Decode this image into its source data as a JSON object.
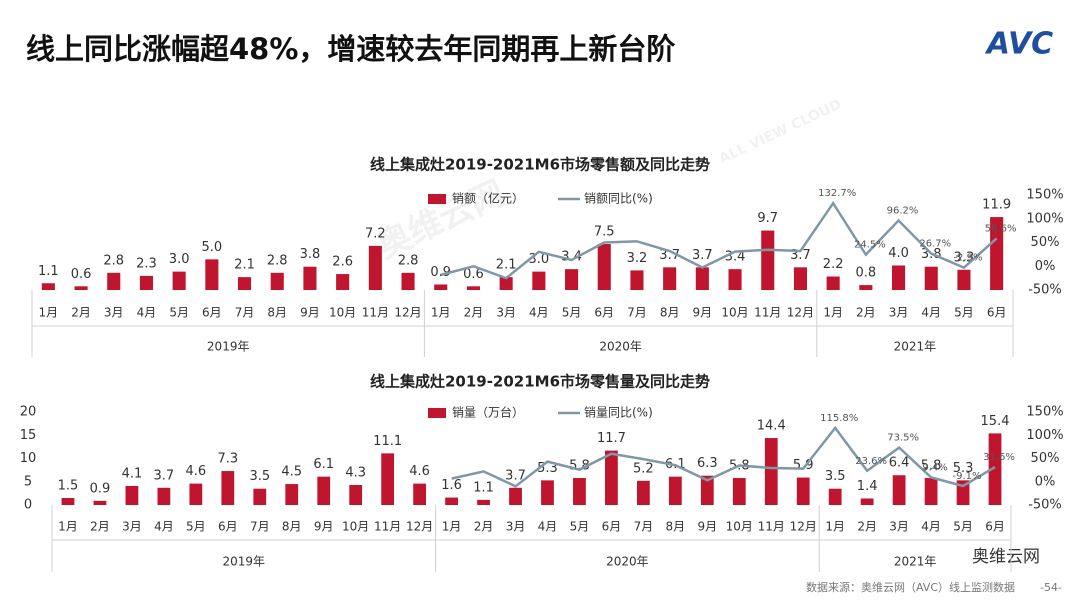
{
  "page": {
    "title": "线上同比涨幅超48%，增速较去年同期再上新台阶",
    "logo": "AVC",
    "source": "数据来源：奥维云网（AVC）线上监测数据",
    "page_number": "-54-",
    "wechat": "奥维云网",
    "watermarks": [
      "奥维云网",
      "ALL VIEW CLOUD"
    ]
  },
  "chart_data": [
    {
      "type": "combo",
      "title": "线上集成灶2019-2021M6市场零售额及同比走势",
      "categories": [
        "1月",
        "2月",
        "3月",
        "4月",
        "5月",
        "6月",
        "7月",
        "8月",
        "9月",
        "10月",
        "11月",
        "12月",
        "1月",
        "2月",
        "3月",
        "4月",
        "5月",
        "6月",
        "7月",
        "8月",
        "9月",
        "10月",
        "11月",
        "12月",
        "1月",
        "2月",
        "3月",
        "4月",
        "5月",
        "6月"
      ],
      "category_groups": [
        "2019年",
        "2019年",
        "2019年",
        "2019年",
        "2019年",
        "2019年",
        "2019年",
        "2019年",
        "2019年",
        "2019年",
        "2019年",
        "2019年",
        "2020年",
        "2020年",
        "2020年",
        "2020年",
        "2020年",
        "2020年",
        "2020年",
        "2020年",
        "2020年",
        "2020年",
        "2020年",
        "2020年",
        "2021年",
        "2021年",
        "2021年",
        "2021年",
        "2021年",
        "2021年"
      ],
      "ylim": [
        0,
        15.5
      ],
      "y2lim": [
        -50,
        150
      ],
      "y2ticks": [
        {
          "value": -50,
          "label": "-50%"
        },
        {
          "value": 0,
          "label": "0%"
        },
        {
          "value": 50,
          "label": "50%"
        },
        {
          "value": 100,
          "label": "100%"
        },
        {
          "value": 150,
          "label": "150%"
        }
      ],
      "series": [
        {
          "name": "销额（亿元）",
          "type": "bar",
          "color": "#c0152f",
          "values": [
            1.1,
            0.6,
            2.8,
            2.3,
            3.0,
            5.0,
            2.1,
            2.8,
            3.8,
            2.6,
            7.2,
            2.8,
            0.9,
            0.6,
            2.1,
            3.0,
            3.4,
            7.5,
            3.2,
            3.7,
            3.7,
            3.4,
            9.7,
            3.7,
            2.2,
            0.8,
            4.0,
            3.8,
            3.3,
            11.9
          ],
          "value_labels": [
            "1.1",
            "0.6",
            "2.8",
            "2.3",
            "3.0",
            "5.0",
            "2.1",
            "2.8",
            "3.8",
            "2.6",
            "7.2",
            "2.8",
            "0.9",
            "0.6",
            "2.1",
            "3.0",
            "3.4",
            "7.5",
            "3.2",
            "3.7",
            "3.7",
            "3.4",
            "9.7",
            "3.7",
            "2.2",
            "0.8",
            "4.0",
            "3.8",
            "3.3",
            "11.9"
          ]
        },
        {
          "name": "销额同比(%)",
          "type": "line",
          "axis": "y2",
          "color": "#7f97a6",
          "values": [
            null,
            null,
            null,
            null,
            null,
            null,
            null,
            null,
            null,
            null,
            null,
            null,
            -18.2,
            0,
            -25,
            30.4,
            13.3,
            50,
            52.4,
            32.1,
            -2.6,
            30.8,
            34.7,
            32.1,
            132.7,
            24.5,
            96.2,
            26.7,
            -2.9,
            58.6
          ],
          "value_labels": [
            null,
            null,
            null,
            null,
            null,
            null,
            null,
            null,
            null,
            null,
            null,
            null,
            null,
            null,
            null,
            null,
            null,
            null,
            null,
            null,
            null,
            null,
            null,
            null,
            "132.7%",
            "24.5%",
            "96.2%",
            "26.7%",
            "-2.9%",
            "58.6%"
          ]
        }
      ]
    },
    {
      "type": "combo",
      "title": "线上集成灶2019-2021M6市场零售量及同比走势",
      "categories": [
        "1月",
        "2月",
        "3月",
        "4月",
        "5月",
        "6月",
        "7月",
        "8月",
        "9月",
        "10月",
        "11月",
        "12月",
        "1月",
        "2月",
        "3月",
        "4月",
        "5月",
        "6月",
        "7月",
        "8月",
        "9月",
        "10月",
        "11月",
        "12月",
        "1月",
        "2月",
        "3月",
        "4月",
        "5月",
        "6月"
      ],
      "category_groups": [
        "2019年",
        "2019年",
        "2019年",
        "2019年",
        "2019年",
        "2019年",
        "2019年",
        "2019年",
        "2019年",
        "2019年",
        "2019年",
        "2019年",
        "2020年",
        "2020年",
        "2020年",
        "2020年",
        "2020年",
        "2020年",
        "2020年",
        "2020年",
        "2020年",
        "2020年",
        "2020年",
        "2020年",
        "2021年",
        "2021年",
        "2021年",
        "2021年",
        "2021年",
        "2021年"
      ],
      "ylim": [
        0,
        20
      ],
      "yticks": [
        0,
        5,
        10,
        15,
        20
      ],
      "y2lim": [
        -50,
        150
      ],
      "y2ticks": [
        {
          "value": -50,
          "label": "-50%"
        },
        {
          "value": 0,
          "label": "0%"
        },
        {
          "value": 50,
          "label": "50%"
        },
        {
          "value": 100,
          "label": "100%"
        },
        {
          "value": 150,
          "label": "150%"
        }
      ],
      "series": [
        {
          "name": "销量（万台）",
          "type": "bar",
          "color": "#c0152f",
          "values": [
            1.5,
            0.9,
            4.1,
            3.7,
            4.6,
            7.3,
            3.5,
            4.5,
            6.1,
            4.3,
            11.1,
            4.6,
            1.6,
            1.1,
            3.7,
            5.3,
            5.8,
            11.7,
            5.2,
            6.1,
            6.3,
            5.8,
            14.4,
            5.9,
            3.5,
            1.4,
            6.4,
            5.8,
            5.3,
            15.4
          ],
          "value_labels": [
            "1.5",
            "0.9",
            "4.1",
            "3.7",
            "4.6",
            "7.3",
            "3.5",
            "4.5",
            "6.1",
            "4.3",
            "11.1",
            "4.6",
            "1.6",
            "1.1",
            "3.7",
            "5.3",
            "5.8",
            "11.7",
            "5.2",
            "6.1",
            "6.3",
            "5.8",
            "14.4",
            "5.9",
            "3.5",
            "1.4",
            "6.4",
            "5.8",
            "5.3",
            "15.4"
          ]
        },
        {
          "name": "销量同比(%)",
          "type": "line",
          "axis": "y2",
          "color": "#7f97a6",
          "values": [
            null,
            null,
            null,
            null,
            null,
            null,
            null,
            null,
            null,
            null,
            null,
            null,
            6.7,
            22.2,
            -9.8,
            43.2,
            26.1,
            60.3,
            48.6,
            35.6,
            3.3,
            34.9,
            29.7,
            28.3,
            115.8,
            23.6,
            73.5,
            9.4,
            -9.1,
            31.6
          ],
          "value_labels": [
            null,
            null,
            null,
            null,
            null,
            null,
            null,
            null,
            null,
            null,
            null,
            null,
            null,
            null,
            null,
            null,
            null,
            null,
            null,
            null,
            null,
            null,
            null,
            null,
            "115.8%",
            "23.6%",
            "73.5%",
            "9.4%",
            "-9.1%",
            "31.6%"
          ]
        }
      ]
    }
  ]
}
